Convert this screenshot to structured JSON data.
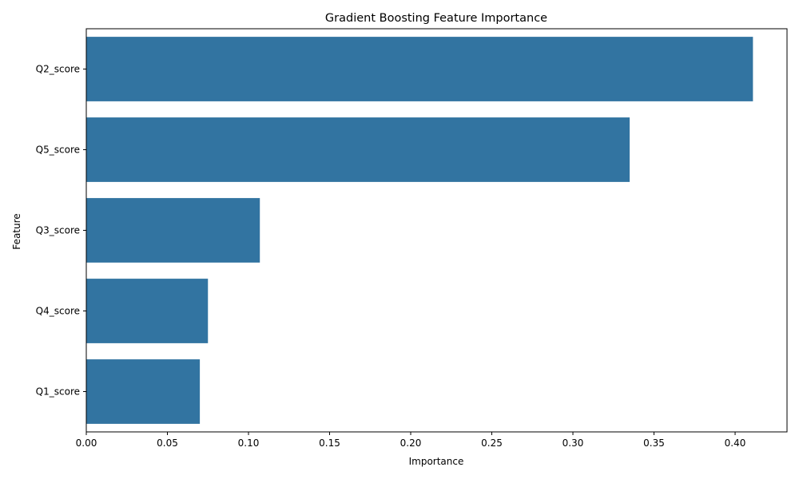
{
  "chart_data": {
    "type": "bar",
    "orientation": "horizontal",
    "title": "Gradient Boosting Feature Importance",
    "xlabel": "Importance",
    "ylabel": "Feature",
    "categories": [
      "Q2_score",
      "Q5_score",
      "Q3_score",
      "Q4_score",
      "Q1_score"
    ],
    "values": [
      0.411,
      0.335,
      0.107,
      0.075,
      0.07
    ],
    "xlim": [
      0,
      0.432
    ],
    "xticks": [
      "0.00",
      "0.05",
      "0.10",
      "0.15",
      "0.20",
      "0.25",
      "0.30",
      "0.35",
      "0.40"
    ],
    "bar_color": "#3274a1",
    "grid": false,
    "legend": "none"
  }
}
